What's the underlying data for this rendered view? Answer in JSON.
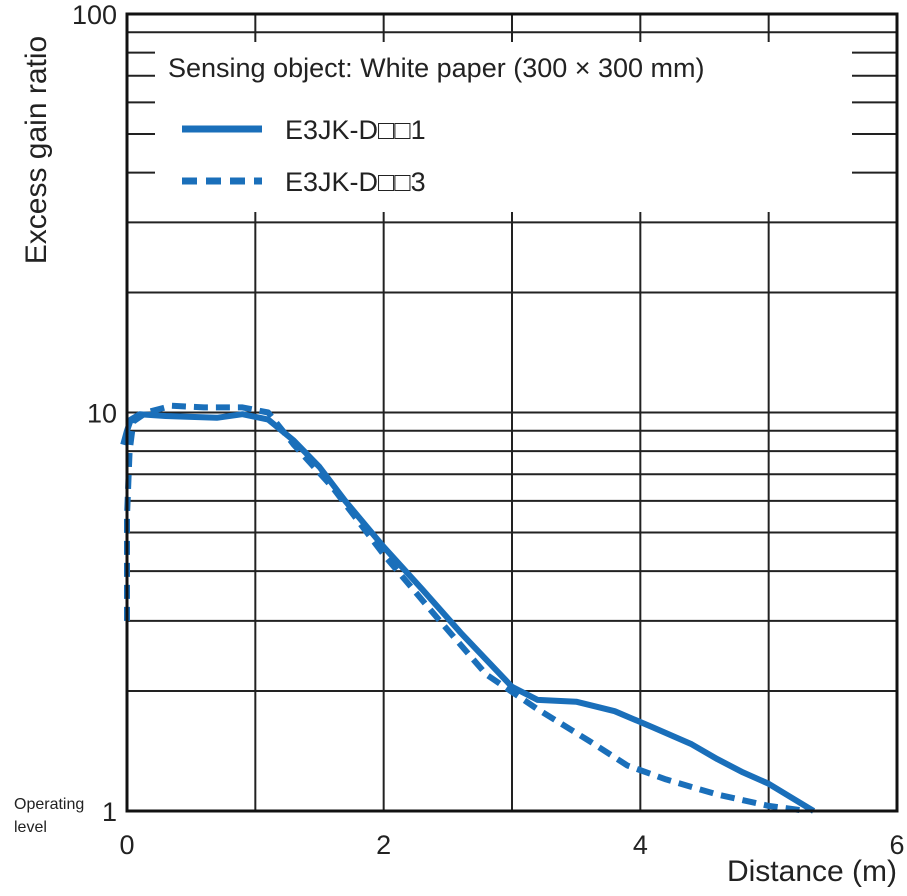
{
  "chart_data": {
    "type": "line",
    "title": "Sensing object: White paper (300 × 300 mm)",
    "xlabel": "Distance (m)",
    "ylabel": "Excess gain ratio",
    "xlim": [
      0,
      6
    ],
    "ylim": [
      1,
      100
    ],
    "yscale": "log",
    "grid": true,
    "legend_position": "top-left",
    "x_ticks": [
      "0",
      "2",
      "4",
      "6"
    ],
    "y_ticks": [
      "1",
      "10",
      "100"
    ],
    "operating_level_label": [
      "Operating",
      "level"
    ],
    "series": [
      {
        "name": "E3JK-D□□1",
        "style": "solid",
        "color": "#1a6fba",
        "x": [
          -0.03,
          0.0,
          0.03,
          0.1,
          0.3,
          0.7,
          0.9,
          1.1,
          1.3,
          1.5,
          1.7,
          2.0,
          2.3,
          2.6,
          3.0,
          3.2,
          3.5,
          3.8,
          4.1,
          4.4,
          4.6,
          4.8,
          5.0,
          5.2,
          5.35
        ],
        "y": [
          8.3,
          9.0,
          9.6,
          9.9,
          9.8,
          9.7,
          9.9,
          9.6,
          8.5,
          7.3,
          6.0,
          4.6,
          3.6,
          2.8,
          2.05,
          1.9,
          1.88,
          1.78,
          1.62,
          1.47,
          1.35,
          1.25,
          1.17,
          1.07,
          1.0
        ]
      },
      {
        "name": "E3JK-D□□3",
        "style": "dashed",
        "color": "#1a6fba",
        "x": [
          0.0,
          0.0,
          0.02,
          0.05,
          0.15,
          0.35,
          0.6,
          0.9,
          1.1,
          1.3,
          1.6,
          2.0,
          2.4,
          2.8,
          3.2,
          3.6,
          3.9,
          4.2,
          4.6,
          5.0,
          5.3
        ],
        "y": [
          3.0,
          5.5,
          8.0,
          9.5,
          10.0,
          10.4,
          10.3,
          10.3,
          10.0,
          8.3,
          6.5,
          4.4,
          3.1,
          2.2,
          1.8,
          1.5,
          1.3,
          1.2,
          1.1,
          1.03,
          1.0
        ]
      }
    ]
  }
}
